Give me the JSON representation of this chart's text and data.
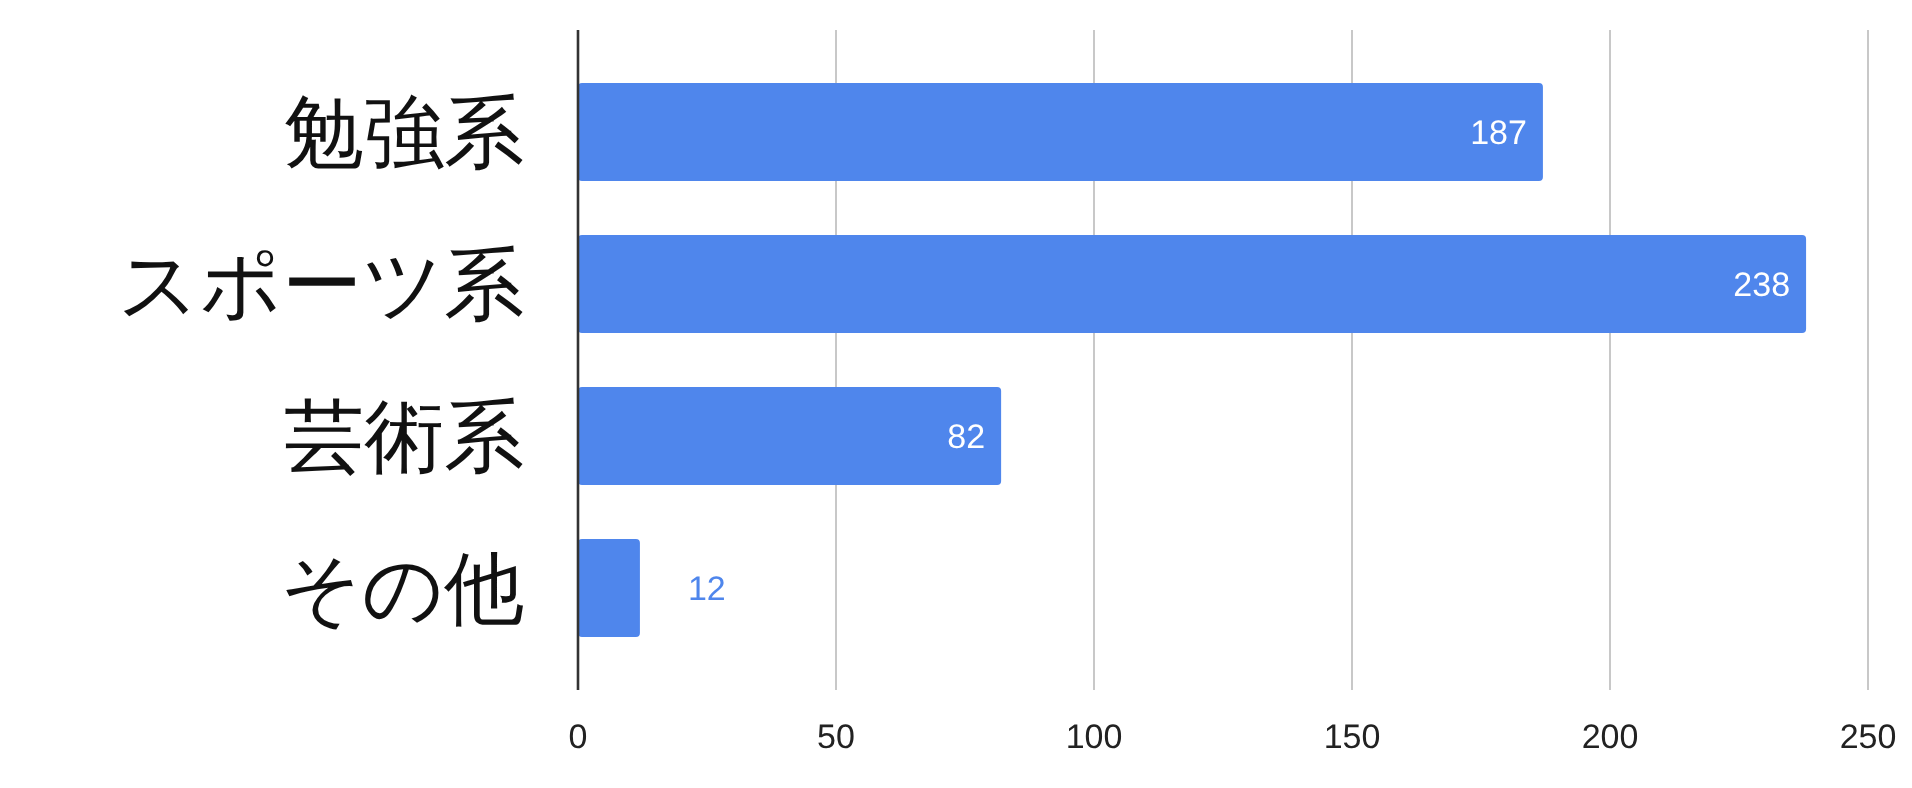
{
  "chart_data": {
    "type": "bar",
    "orientation": "horizontal",
    "categories": [
      "勉強系",
      "スポーツ系",
      "芸術系",
      "その他"
    ],
    "values": [
      187,
      238,
      82,
      12
    ],
    "color": "#4f86ec",
    "xlim": [
      0,
      250
    ],
    "xticks": [
      0,
      50,
      100,
      150,
      200,
      250
    ],
    "grid": "x",
    "data_labels": true
  }
}
